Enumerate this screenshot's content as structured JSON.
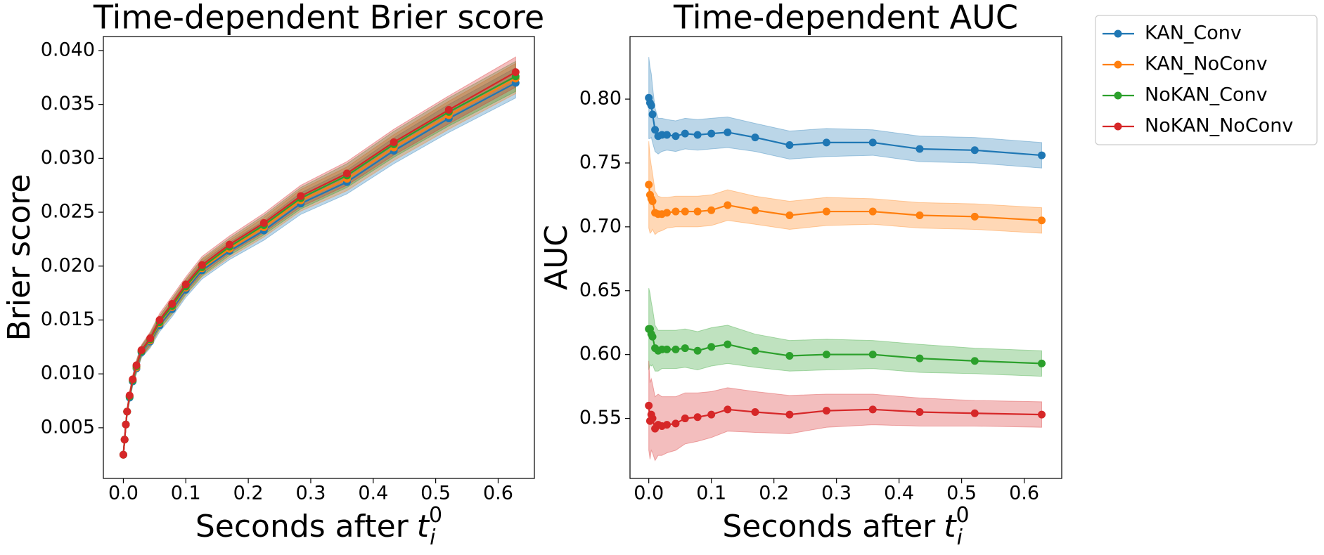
{
  "chart_data": [
    {
      "type": "line",
      "title": "Time-dependent Brier score",
      "ylabel": "Brier score",
      "xlabel": {
        "text": "Seconds after",
        "var": "t",
        "sub": "i",
        "sup": "0"
      },
      "x": [
        0,
        0.002,
        0.004,
        0.006,
        0.01,
        0.015,
        0.021,
        0.029,
        0.043,
        0.058,
        0.078,
        0.1,
        0.126,
        0.17,
        0.225,
        0.284,
        0.358,
        0.433,
        0.521,
        0.628
      ],
      "xlim": [
        -0.032,
        0.658
      ],
      "xticks": [
        {
          "value": 0,
          "label": "0.0"
        },
        0.1,
        0.2,
        0.3,
        0.4,
        0.5,
        0.6
      ],
      "ylim": [
        0.0003,
        0.0413
      ],
      "yticks": [
        0.005,
        {
          "value": 0.01,
          "label": "0.010"
        },
        0.015,
        {
          "value": 0.02,
          "label": "0.020"
        },
        0.025,
        {
          "value": 0.03,
          "label": "0.030"
        },
        0.035,
        {
          "value": 0.04,
          "label": "0.040"
        }
      ],
      "series": [
        {
          "color": "#1f77b4",
          "values": [
            0.0025,
            0.0039,
            0.0053,
            0.0065,
            0.0078,
            0.0093,
            0.0105,
            0.012,
            0.013,
            0.0145,
            0.016,
            0.0178,
            0.0196,
            0.0214,
            0.0233,
            0.0258,
            0.0278,
            0.0307,
            0.0337,
            0.037
          ],
          "errors": [
            0.0002,
            0.0002,
            0.0003,
            0.0003,
            0.0004,
            0.0004,
            0.0005,
            0.0005,
            0.0006,
            0.0006,
            0.0007,
            0.0007,
            0.0008,
            0.0008,
            0.0009,
            0.001,
            0.0011,
            0.0012,
            0.0013,
            0.0014
          ]
        },
        {
          "color": "#ff7f0e",
          "values": [
            0.0025,
            0.0039,
            0.0053,
            0.0065,
            0.0079,
            0.0094,
            0.0106,
            0.0121,
            0.0131,
            0.0147,
            0.0162,
            0.018,
            0.0198,
            0.0216,
            0.0236,
            0.0261,
            0.0281,
            0.031,
            0.034,
            0.0374
          ],
          "errors": [
            0.0002,
            0.0002,
            0.0003,
            0.0003,
            0.0004,
            0.0004,
            0.0005,
            0.0005,
            0.0006,
            0.0006,
            0.0007,
            0.0007,
            0.0008,
            0.0008,
            0.0009,
            0.001,
            0.0011,
            0.0012,
            0.0013,
            0.0014
          ]
        },
        {
          "color": "#2ca02c",
          "values": [
            0.0025,
            0.0039,
            0.0053,
            0.0065,
            0.0079,
            0.0094,
            0.0107,
            0.0121,
            0.0132,
            0.0148,
            0.0163,
            0.0181,
            0.0199,
            0.0218,
            0.0238,
            0.0263,
            0.0284,
            0.0313,
            0.0343,
            0.0376
          ],
          "errors": [
            0.0002,
            0.0002,
            0.0003,
            0.0003,
            0.0004,
            0.0004,
            0.0005,
            0.0005,
            0.0006,
            0.0006,
            0.0007,
            0.0007,
            0.0008,
            0.0008,
            0.0009,
            0.001,
            0.0011,
            0.0012,
            0.0013,
            0.0014
          ]
        },
        {
          "color": "#d62728",
          "values": [
            0.0025,
            0.0039,
            0.0053,
            0.0065,
            0.008,
            0.0095,
            0.0108,
            0.0122,
            0.0133,
            0.015,
            0.0165,
            0.0183,
            0.0201,
            0.022,
            0.024,
            0.0265,
            0.0286,
            0.0315,
            0.0345,
            0.038
          ],
          "errors": [
            0.0002,
            0.0002,
            0.0003,
            0.0003,
            0.0004,
            0.0004,
            0.0005,
            0.0005,
            0.0006,
            0.0006,
            0.0007,
            0.0007,
            0.0008,
            0.0008,
            0.0009,
            0.001,
            0.0011,
            0.0012,
            0.0013,
            0.0014
          ]
        }
      ]
    },
    {
      "type": "line",
      "title": "Time-dependent AUC",
      "ylabel": "AUC",
      "xlabel": {
        "text": "Seconds after",
        "var": "t",
        "sub": "i",
        "sup": "0"
      },
      "x": [
        0,
        0.002,
        0.004,
        0.006,
        0.01,
        0.015,
        0.021,
        0.029,
        0.043,
        0.058,
        0.078,
        0.1,
        0.126,
        0.17,
        0.225,
        0.284,
        0.358,
        0.433,
        0.521,
        0.628
      ],
      "xlim": [
        -0.03,
        0.66
      ],
      "xticks": [
        {
          "value": 0,
          "label": "0.0"
        },
        0.1,
        0.2,
        0.3,
        0.4,
        0.5,
        0.6
      ],
      "ylim": [
        0.503,
        0.849
      ],
      "yticks": [
        0.55,
        {
          "value": 0.6,
          "label": "0.60"
        },
        0.65,
        {
          "value": 0.7,
          "label": "0.70"
        },
        0.75,
        {
          "value": 0.8,
          "label": "0.80"
        }
      ],
      "legend": "outside-upper-right",
      "series": [
        {
          "name": "KAN_Conv",
          "color": "#1f77b4",
          "values": [
            0.801,
            0.797,
            0.795,
            0.788,
            0.776,
            0.771,
            0.772,
            0.772,
            0.771,
            0.773,
            0.772,
            0.773,
            0.774,
            0.77,
            0.764,
            0.766,
            0.766,
            0.761,
            0.76,
            0.756
          ],
          "errors": [
            0.032,
            0.028,
            0.025,
            0.022,
            0.017,
            0.014,
            0.013,
            0.012,
            0.012,
            0.012,
            0.012,
            0.012,
            0.012,
            0.011,
            0.011,
            0.011,
            0.01,
            0.01,
            0.01,
            0.01
          ]
        },
        {
          "name": "KAN_NoConv",
          "color": "#ff7f0e",
          "values": [
            0.733,
            0.725,
            0.722,
            0.72,
            0.711,
            0.71,
            0.71,
            0.711,
            0.712,
            0.712,
            0.712,
            0.713,
            0.717,
            0.713,
            0.709,
            0.712,
            0.712,
            0.709,
            0.708,
            0.705
          ],
          "errors": [
            0.034,
            0.03,
            0.026,
            0.022,
            0.017,
            0.014,
            0.013,
            0.012,
            0.012,
            0.012,
            0.012,
            0.012,
            0.012,
            0.011,
            0.011,
            0.011,
            0.01,
            0.01,
            0.01,
            0.01
          ]
        },
        {
          "name": "NoKAN_Conv",
          "color": "#2ca02c",
          "values": [
            0.62,
            0.62,
            0.616,
            0.614,
            0.605,
            0.603,
            0.604,
            0.604,
            0.604,
            0.605,
            0.603,
            0.606,
            0.608,
            0.603,
            0.599,
            0.6,
            0.6,
            0.597,
            0.595,
            0.593
          ],
          "errors": [
            0.032,
            0.028,
            0.025,
            0.022,
            0.018,
            0.016,
            0.015,
            0.015,
            0.015,
            0.015,
            0.015,
            0.015,
            0.015,
            0.013,
            0.012,
            0.012,
            0.011,
            0.011,
            0.01,
            0.01
          ]
        },
        {
          "name": "NoKAN_NoConv",
          "color": "#d62728",
          "values": [
            0.56,
            0.548,
            0.553,
            0.55,
            0.542,
            0.545,
            0.544,
            0.545,
            0.546,
            0.55,
            0.551,
            0.553,
            0.557,
            0.555,
            0.553,
            0.556,
            0.557,
            0.555,
            0.554,
            0.553
          ],
          "errors": [
            0.035,
            0.03,
            0.028,
            0.027,
            0.025,
            0.024,
            0.023,
            0.022,
            0.021,
            0.02,
            0.019,
            0.018,
            0.017,
            0.016,
            0.015,
            0.013,
            0.012,
            0.011,
            0.01,
            0.01
          ]
        }
      ]
    }
  ]
}
